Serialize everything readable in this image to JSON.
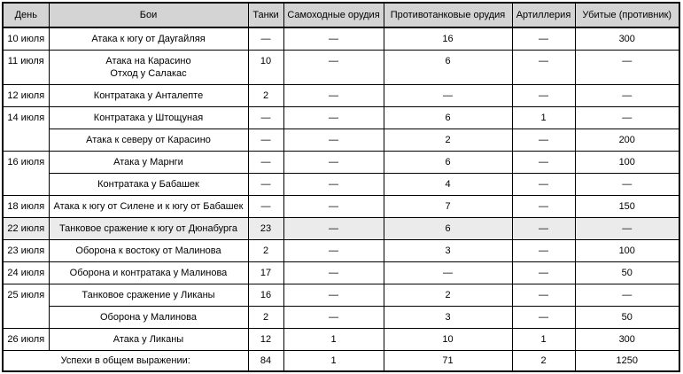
{
  "colors": {
    "header_bg": "#d4d4d4",
    "highlight_row_bg": "#ebebeb",
    "border": "#000000",
    "text": "#000000"
  },
  "table": {
    "headers": [
      "День",
      "Бои",
      "Танки",
      "Самоходные орудия",
      "Противотанковые орудия",
      "Артиллерия",
      "Убитые (противник)"
    ],
    "rows": [
      {
        "day": "10 июля",
        "rowspan": 1,
        "battle": [
          "Атака к югу от Даугайляя"
        ],
        "tanks": "—",
        "spg": "—",
        "at_guns": "16",
        "artillery": "—",
        "killed": "300",
        "highlight": false
      },
      {
        "day": "11 июля",
        "rowspan": 1,
        "battle": [
          "Атака на Карасино",
          "Отход у Салакас"
        ],
        "tanks": "10",
        "spg": "—",
        "at_guns": "6",
        "artillery": "—",
        "killed": "—",
        "highlight": false
      },
      {
        "day": "12 июля",
        "rowspan": 1,
        "battle": [
          "Контратака у Анталепте"
        ],
        "tanks": "2",
        "spg": "—",
        "at_guns": "—",
        "artillery": "—",
        "killed": "—",
        "highlight": false
      },
      {
        "day": "14 июля",
        "rowspan": 2,
        "battle": [
          "Контратака у Штощуная"
        ],
        "tanks": "—",
        "spg": "—",
        "at_guns": "6",
        "artillery": "1",
        "killed": "—",
        "highlight": false
      },
      {
        "day": null,
        "rowspan": 0,
        "battle": [
          "Атака к северу от Карасино"
        ],
        "tanks": "—",
        "spg": "—",
        "at_guns": "2",
        "artillery": "—",
        "killed": "200",
        "highlight": false
      },
      {
        "day": "16 июля",
        "rowspan": 2,
        "battle": [
          "Атака у Марнги"
        ],
        "tanks": "—",
        "spg": "—",
        "at_guns": "6",
        "artillery": "—",
        "killed": "100",
        "highlight": false
      },
      {
        "day": null,
        "rowspan": 0,
        "battle": [
          "Контратака у Бабашек"
        ],
        "tanks": "—",
        "spg": "—",
        "at_guns": "4",
        "artillery": "—",
        "killed": "—",
        "highlight": false
      },
      {
        "day": "18 июля",
        "rowspan": 1,
        "battle": [
          "Атака к югу от Силене и к югу от Бабашек"
        ],
        "tanks": "—",
        "spg": "—",
        "at_guns": "7",
        "artillery": "—",
        "killed": "150",
        "highlight": false
      },
      {
        "day": "22 июля",
        "rowspan": 1,
        "battle": [
          "Танковое сражение к югу от Дюнабурга"
        ],
        "tanks": "23",
        "spg": "—",
        "at_guns": "6",
        "artillery": "—",
        "killed": "—",
        "highlight": true
      },
      {
        "day": "23 июля",
        "rowspan": 1,
        "battle": [
          "Оборона к востоку от Малинова"
        ],
        "tanks": "2",
        "spg": "—",
        "at_guns": "3",
        "artillery": "—",
        "killed": "100",
        "highlight": false
      },
      {
        "day": "24 июля",
        "rowspan": 1,
        "battle": [
          "Оборона и контратака у Малинова"
        ],
        "tanks": "17",
        "spg": "—",
        "at_guns": "—",
        "artillery": "—",
        "killed": "50",
        "highlight": false
      },
      {
        "day": "25 июля",
        "rowspan": 2,
        "battle": [
          "Танковое сражение у Ликаны"
        ],
        "tanks": "16",
        "spg": "—",
        "at_guns": "2",
        "artillery": "—",
        "killed": "—",
        "highlight": false
      },
      {
        "day": null,
        "rowspan": 0,
        "battle": [
          "Оборона у Малинова"
        ],
        "tanks": "2",
        "spg": "—",
        "at_guns": "3",
        "artillery": "—",
        "killed": "50",
        "highlight": false
      },
      {
        "day": "26 июля",
        "rowspan": 1,
        "battle": [
          "Атака у Ликаны"
        ],
        "tanks": "12",
        "spg": "1",
        "at_guns": "10",
        "artillery": "1",
        "killed": "300",
        "highlight": false
      }
    ],
    "footer": {
      "label": "Успехи в общем выражении:",
      "tanks": "84",
      "spg": "1",
      "at_guns": "71",
      "artillery": "2",
      "killed": "1250"
    }
  }
}
